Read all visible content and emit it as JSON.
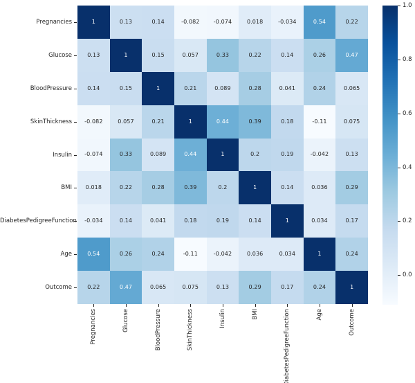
{
  "figure": {
    "background": "#ffffff",
    "description": "Correlation heatmap of diabetes dataset features"
  },
  "chart_data": {
    "type": "heatmap",
    "title": "",
    "xlabel": "",
    "ylabel": "",
    "categories": [
      "Pregnancies",
      "Glucose",
      "BloodPressure",
      "SkinThickness",
      "Insulin",
      "BMI",
      "DiabetesPedigreeFunction",
      "Age",
      "Outcome"
    ],
    "matrix": [
      [
        1,
        0.13,
        0.14,
        -0.082,
        -0.074,
        0.018,
        -0.034,
        0.54,
        0.22
      ],
      [
        0.13,
        1,
        0.15,
        0.057,
        0.33,
        0.22,
        0.14,
        0.26,
        0.47
      ],
      [
        0.14,
        0.15,
        1,
        0.21,
        0.089,
        0.28,
        0.041,
        0.24,
        0.065
      ],
      [
        -0.082,
        0.057,
        0.21,
        1,
        0.44,
        0.39,
        0.18,
        -0.11,
        0.075
      ],
      [
        -0.074,
        0.33,
        0.089,
        0.44,
        1,
        0.2,
        0.19,
        -0.042,
        0.13
      ],
      [
        0.018,
        0.22,
        0.28,
        0.39,
        0.2,
        1,
        0.14,
        0.036,
        0.29
      ],
      [
        -0.034,
        0.14,
        0.041,
        0.18,
        0.19,
        0.14,
        1,
        0.034,
        0.17
      ],
      [
        0.54,
        0.26,
        0.24,
        -0.11,
        -0.042,
        0.036,
        0.034,
        1,
        0.24
      ],
      [
        0.22,
        0.47,
        0.065,
        0.075,
        0.13,
        0.29,
        0.17,
        0.24,
        1
      ]
    ],
    "vmin": -0.11,
    "vmax": 1,
    "colormap": "Blues",
    "colormap_stops": [
      "#f7fbff",
      "#deebf7",
      "#c6dbef",
      "#9ecae1",
      "#6baed6",
      "#4292c6",
      "#2171b5",
      "#08519c",
      "#08306b"
    ],
    "colorbar": {
      "position": "right",
      "tick_labels": [
        "1.0",
        "0.8",
        "0.6",
        "0.4",
        "0.2",
        "0.0"
      ],
      "tick_values": [
        1.0,
        0.8,
        0.6,
        0.4,
        0.2,
        0.0
      ]
    },
    "annotation": {
      "enabled": true,
      "dark_text_color": "#262626",
      "light_text_color": "#ffffff"
    },
    "grid": false,
    "legend": "none"
  }
}
